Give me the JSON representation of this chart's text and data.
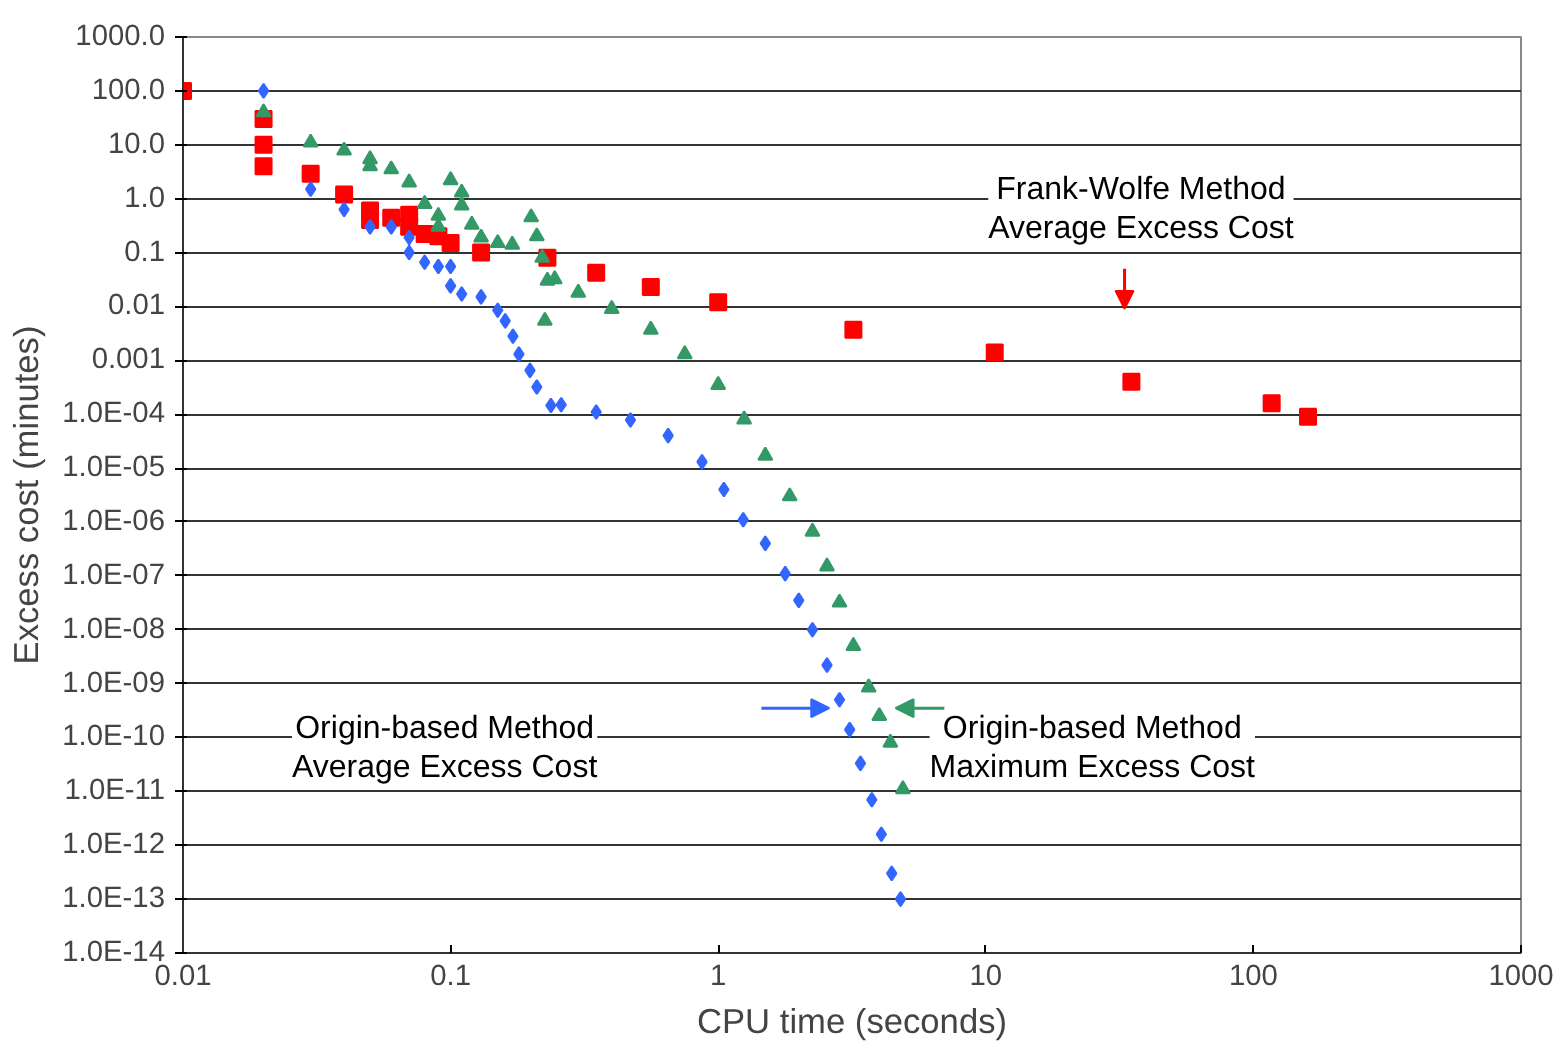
{
  "chart_data": {
    "type": "scatter",
    "xlabel": "CPU time (seconds)",
    "ylabel": "Excess cost (minutes)",
    "log": "xy",
    "grid": "y",
    "xlim": [
      0.01,
      1000
    ],
    "ylim": [
      1e-14,
      1000
    ],
    "xticks": [
      0.01,
      0.1,
      1,
      10,
      100,
      1000
    ],
    "yticks": [
      {
        "value": 1000,
        "label": "1000.0"
      },
      {
        "value": 100,
        "label": "100.0"
      },
      {
        "value": 10,
        "label": "10.0"
      },
      {
        "value": 1,
        "label": "1.0"
      },
      {
        "value": 0.1,
        "label": "0.1"
      },
      {
        "value": 0.01,
        "label": "0.01"
      },
      {
        "value": 0.001,
        "label": "0.001"
      },
      {
        "value": 0.0001,
        "label": "1.0E-04"
      },
      {
        "value": 1e-05,
        "label": "1.0E-05"
      },
      {
        "value": 1e-06,
        "label": "1.0E-06"
      },
      {
        "value": 1e-07,
        "label": "1.0E-07"
      },
      {
        "value": 1e-08,
        "label": "1.0E-08"
      },
      {
        "value": 1e-09,
        "label": "1.0E-09"
      },
      {
        "value": 1e-10,
        "label": "1.0E-10"
      },
      {
        "value": 1e-11,
        "label": "1.0E-11"
      },
      {
        "value": 1e-12,
        "label": "1.0E-12"
      },
      {
        "value": 1e-13,
        "label": "1.0E-13"
      },
      {
        "value": 1e-14,
        "label": "1.0E-14"
      }
    ],
    "series": [
      {
        "color": "#ff0000",
        "marker": "square",
        "x": [
          0.01,
          0.02,
          0.02,
          0.02,
          0.03,
          0.04,
          0.05,
          0.05,
          0.06,
          0.07,
          0.07,
          0.08,
          0.09,
          0.1,
          0.13,
          0.23,
          0.35,
          0.56,
          1,
          3.2,
          10.8,
          35,
          117,
          160
        ],
        "values": [
          100,
          30,
          10,
          4,
          2.9,
          1.2,
          0.6,
          0.4,
          0.44,
          0.5,
          0.3,
          0.22,
          0.2,
          0.15,
          0.1,
          0.08,
          0.042,
          0.023,
          0.012,
          0.0037,
          0.0014,
          0.0004,
          0.00016,
          9e-05
        ]
      },
      {
        "color": "#339966",
        "marker": "triangle",
        "x": [
          0.02,
          0.03,
          0.04,
          0.05,
          0.05,
          0.06,
          0.07,
          0.08,
          0.09,
          0.09,
          0.1,
          0.11,
          0.11,
          0.12,
          0.13,
          0.15,
          0.17,
          0.2,
          0.21,
          0.22,
          0.225,
          0.23,
          0.245,
          0.3,
          0.4,
          0.56,
          0.75,
          1.0,
          1.25,
          1.5,
          1.85,
          2.25,
          2.55,
          2.84,
          3.2,
          3.65,
          4.0,
          4.4,
          4.9
        ],
        "values": [
          40,
          11,
          7.8,
          5.4,
          4,
          3.5,
          2.0,
          0.8,
          0.48,
          0.3,
          2.2,
          1.3,
          0.75,
          0.33,
          0.19,
          0.15,
          0.14,
          0.45,
          0.2,
          0.08,
          0.0054,
          0.03,
          0.032,
          0.018,
          0.009,
          0.0037,
          0.0013,
          0.00035,
          8e-05,
          1.7e-05,
          3e-06,
          6.6e-07,
          1.5e-07,
          3.2e-08,
          5e-09,
          8.5e-10,
          2.5e-10,
          8e-11,
          1.1e-11
        ]
      },
      {
        "color": "#3366ff",
        "marker": "diamond",
        "x": [
          0.02,
          0.03,
          0.04,
          0.05,
          0.06,
          0.07,
          0.07,
          0.08,
          0.09,
          0.1,
          0.1,
          0.11,
          0.13,
          0.15,
          0.16,
          0.171,
          0.18,
          0.198,
          0.21,
          0.237,
          0.259,
          0.35,
          0.47,
          0.65,
          0.87,
          1.05,
          1.24,
          1.5,
          1.78,
          2.0,
          2.25,
          2.55,
          2.84,
          3.1,
          3.4,
          3.75,
          4.07,
          4.45,
          4.8
        ],
        "values": [
          100,
          1.5,
          0.63,
          0.3,
          0.3,
          0.19,
          0.1,
          0.066,
          0.055,
          0.055,
          0.024,
          0.017,
          0.015,
          0.0085,
          0.0054,
          0.0028,
          0.0013,
          0.00065,
          0.00032,
          0.000145,
          0.00015,
          0.00011,
          7.8e-05,
          4e-05,
          1.3e-05,
          4e-06,
          1.1e-06,
          4e-07,
          1.1e-07,
          3.5e-08,
          1e-08,
          2.2e-09,
          5e-10,
          1.4e-10,
          3.3e-11,
          7e-12,
          1.6e-12,
          3e-13,
          1e-13
        ]
      }
    ],
    "annotations": [
      "Frank-Wolfe Method\nAverage Excess Cost",
      "Origin-based Method\nAverage Excess Cost",
      "Origin-based Method\nMaximum Excess Cost"
    ]
  }
}
